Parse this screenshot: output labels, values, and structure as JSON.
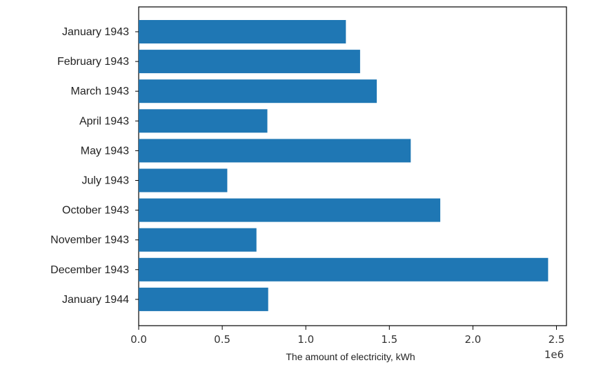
{
  "chart_data": {
    "type": "bar",
    "orientation": "horizontal",
    "categories": [
      "January 1943",
      "February 1943",
      "March 1943",
      "April 1943",
      "May 1943",
      "July 1943",
      "October 1943",
      "November 1943",
      "December 1943",
      "January 1944"
    ],
    "values": [
      1240000,
      1325000,
      1425000,
      770000,
      1628000,
      530000,
      1805000,
      705000,
      2450000,
      775000
    ],
    "xlabel": "The amount of electricity, kWh",
    "ylabel": "",
    "x_ticks": [
      "0.0",
      "0.5",
      "1.0",
      "1.5",
      "2.0",
      "2.5"
    ],
    "x_tick_values": [
      0,
      500000,
      1000000,
      1500000,
      2000000,
      2500000
    ],
    "x_offset_label": "1e6",
    "xlim": [
      0,
      2560000
    ],
    "grid": false,
    "bar_color": "#1f77b4"
  }
}
